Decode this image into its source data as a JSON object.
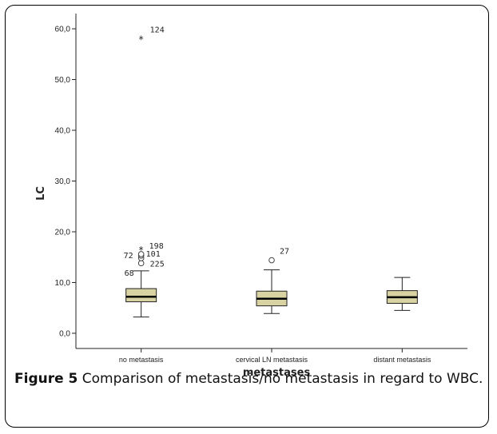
{
  "figure": {
    "caption_label": "Figure 5",
    "caption_text": "Comparison of metastasis/no metastasis in regard to WBC."
  },
  "chart_data": {
    "type": "boxplot",
    "xlabel": "metastases",
    "ylabel": "LC",
    "ylim": [
      -3,
      63
    ],
    "yticks": [
      {
        "value": 0,
        "label": "0,0"
      },
      {
        "value": 10,
        "label": "10,0"
      },
      {
        "value": 20,
        "label": "20,0"
      },
      {
        "value": 30,
        "label": "30,0"
      },
      {
        "value": 40,
        "label": "40,0"
      },
      {
        "value": 50,
        "label": "50,0"
      },
      {
        "value": 60,
        "label": "60,0"
      }
    ],
    "grid": false,
    "box_color": "#d9d3a4",
    "categories": [
      "no metastasis",
      "cervical LN metastasis",
      "distant metastasis"
    ],
    "boxes": [
      {
        "category": "no metastasis",
        "whisker_low": 3.2,
        "q1": 6.2,
        "median": 7.2,
        "q3": 8.8,
        "whisker_high": 12.3,
        "outliers": [
          {
            "value": 13.8,
            "marker": "circle",
            "label": "225"
          },
          {
            "value": 14.8,
            "marker": "circle",
            "label": ""
          },
          {
            "value": 15.3,
            "marker": "circle",
            "label": "72"
          },
          {
            "value": 15.6,
            "marker": "circle",
            "label": "101"
          },
          {
            "value": 16.5,
            "marker": "star",
            "label": "198"
          },
          {
            "value": 58.0,
            "marker": "star",
            "label": "124"
          }
        ],
        "extra_labels": [
          {
            "value": 11.8,
            "label": "68"
          }
        ]
      },
      {
        "category": "cervical LN metastasis",
        "whisker_low": 3.9,
        "q1": 5.4,
        "median": 6.8,
        "q3": 8.3,
        "whisker_high": 12.5,
        "outliers": [
          {
            "value": 14.4,
            "marker": "circle",
            "label": "27"
          }
        ],
        "extra_labels": []
      },
      {
        "category": "distant metastasis",
        "whisker_low": 4.5,
        "q1": 5.9,
        "median": 7.1,
        "q3": 8.4,
        "whisker_high": 11.0,
        "outliers": [],
        "extra_labels": []
      }
    ]
  }
}
